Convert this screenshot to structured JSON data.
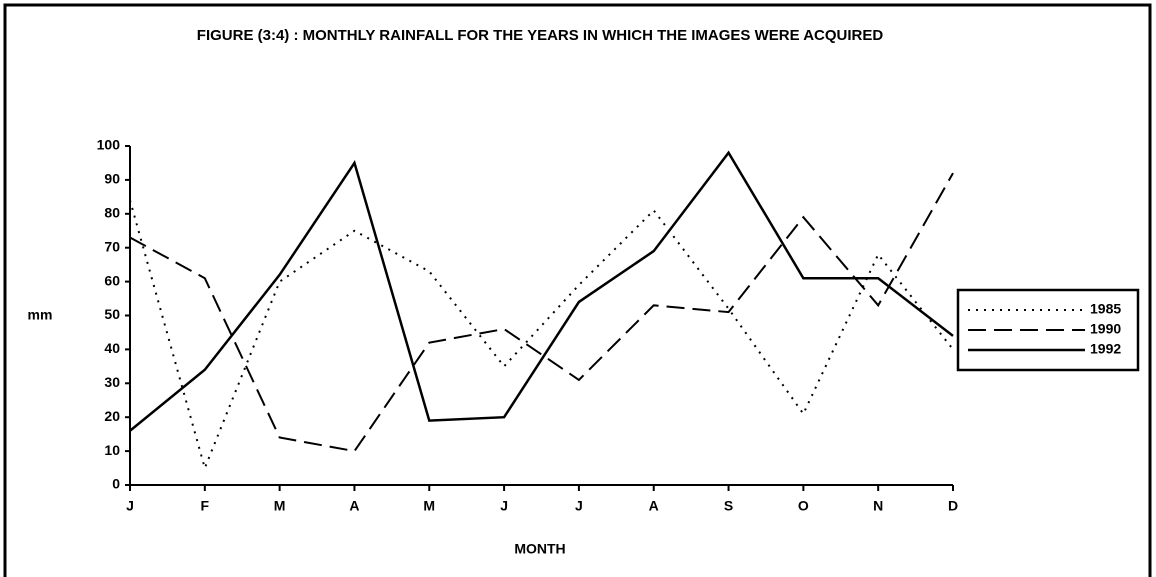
{
  "chart_data": {
    "type": "line",
    "title": "FIGURE (3:4) : MONTHLY RAINFALL FOR THE YEARS IN WHICH THE IMAGES WERE ACQUIRED",
    "xlabel": "MONTH",
    "ylabel": "mm",
    "categories": [
      "J",
      "F",
      "M",
      "A",
      "M",
      "J",
      "J",
      "A",
      "S",
      "O",
      "N",
      "D"
    ],
    "series": [
      {
        "name": "1985",
        "color": "#000000",
        "dash": "dotted",
        "values": [
          84,
          5,
          60,
          75,
          63,
          35,
          59,
          81,
          52,
          21,
          68,
          40
        ]
      },
      {
        "name": "1990",
        "color": "#000000",
        "dash": "dashed",
        "values": [
          73,
          61,
          14,
          10,
          42,
          46,
          31,
          53,
          51,
          79,
          53,
          92
        ]
      },
      {
        "name": "1992",
        "color": "#000000",
        "dash": "solid",
        "values": [
          16,
          34,
          62,
          95,
          19,
          20,
          54,
          69,
          98,
          61,
          61,
          44
        ]
      }
    ],
    "ylim": [
      0,
      100
    ],
    "yticks": [
      0,
      10,
      20,
      30,
      40,
      50,
      60,
      70,
      80,
      90,
      100
    ],
    "grid": false,
    "legend": "right"
  }
}
